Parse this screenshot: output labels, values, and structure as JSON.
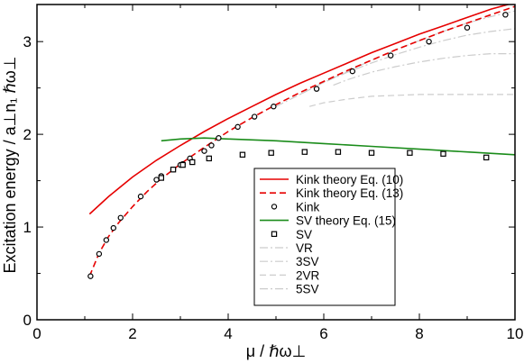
{
  "chart_data": {
    "type": "line",
    "xlabel": "μ / ℏω⊥",
    "ylabel": "Excitation energy / a⊥n₁ ℏω⊥",
    "xlim": [
      0,
      10
    ],
    "ylim": [
      0,
      3.4
    ],
    "xticks": [
      "0",
      "2",
      "4",
      "6",
      "8",
      "10"
    ],
    "yticks": [
      "0",
      "1",
      "2",
      "3"
    ],
    "legend_position": "lower-right",
    "series": [
      {
        "name": "Kink theory Eq. (10)",
        "style": "solid",
        "color": "#e60000",
        "x": [
          1.1,
          1.5,
          2.0,
          2.5,
          3.0,
          3.5,
          4.0,
          4.5,
          5.0,
          5.5,
          6.0,
          6.5,
          7.0,
          7.5,
          8.0,
          8.5,
          9.0,
          9.5,
          10.0
        ],
        "y": [
          1.14,
          1.33,
          1.54,
          1.72,
          1.88,
          2.03,
          2.17,
          2.3,
          2.43,
          2.55,
          2.66,
          2.77,
          2.88,
          2.98,
          3.08,
          3.17,
          3.26,
          3.35,
          3.42
        ]
      },
      {
        "name": "Kink theory Eq. (13)",
        "style": "dashed",
        "color": "#e60000",
        "x": [
          1.1,
          1.3,
          1.5,
          1.7,
          2.0,
          2.3,
          2.6,
          3.0,
          3.5,
          4.0,
          4.5,
          5.0,
          5.5,
          6.0,
          6.5,
          7.0,
          7.5,
          8.0,
          8.5,
          9.0,
          9.5,
          10.0
        ],
        "y": [
          0.47,
          0.72,
          0.9,
          1.04,
          1.22,
          1.38,
          1.52,
          1.68,
          1.86,
          2.03,
          2.18,
          2.32,
          2.45,
          2.57,
          2.69,
          2.8,
          2.91,
          3.01,
          3.11,
          3.2,
          3.29,
          3.38
        ]
      },
      {
        "name": "Kink",
        "style": "circle-markers",
        "color": "#000000",
        "x": [
          1.12,
          1.3,
          1.45,
          1.6,
          1.75,
          2.17,
          2.5,
          2.6,
          2.85,
          3.0,
          3.05,
          3.2,
          3.5,
          3.65,
          3.8,
          4.2,
          4.55,
          4.95,
          5.85,
          6.6,
          7.4,
          8.2,
          9.0,
          9.8
        ],
        "y": [
          0.47,
          0.71,
          0.86,
          0.99,
          1.1,
          1.33,
          1.51,
          1.55,
          1.62,
          1.67,
          1.68,
          1.74,
          1.82,
          1.88,
          1.96,
          2.08,
          2.19,
          2.3,
          2.49,
          2.68,
          2.85,
          3.0,
          3.15,
          3.29
        ]
      },
      {
        "name": "SV theory Eq. (15)",
        "style": "solid",
        "color": "#1a8c1a",
        "x": [
          2.6,
          3.0,
          3.5,
          4.0,
          5.0,
          6.0,
          7.0,
          8.0,
          9.0,
          10.0
        ],
        "y": [
          1.93,
          1.95,
          1.96,
          1.95,
          1.93,
          1.9,
          1.87,
          1.84,
          1.81,
          1.78
        ]
      },
      {
        "name": "SV",
        "style": "square-markers",
        "color": "#000000",
        "x": [
          2.6,
          2.85,
          3.05,
          3.25,
          3.6,
          4.3,
          4.9,
          5.6,
          6.3,
          7.0,
          7.8,
          8.5,
          9.4
        ],
        "y": [
          1.53,
          1.62,
          1.67,
          1.7,
          1.74,
          1.78,
          1.8,
          1.81,
          1.81,
          1.8,
          1.8,
          1.79,
          1.75
        ]
      },
      {
        "name": "VR",
        "style": "dashdot",
        "color": "#cccccc",
        "x": [
          5.0,
          5.5,
          6.0,
          6.5,
          7.0,
          7.5,
          8.0,
          8.5,
          9.0,
          9.5,
          10.0
        ],
        "y": [
          2.3,
          2.43,
          2.56,
          2.68,
          2.8,
          2.91,
          3.01,
          3.11,
          3.2,
          3.27,
          3.33
        ]
      },
      {
        "name": "3SV",
        "style": "dashdot",
        "color": "#cccccc",
        "x": [
          5.5,
          6.0,
          6.5,
          7.0,
          7.5,
          8.0,
          8.5,
          9.0,
          9.5,
          10.0
        ],
        "y": [
          2.43,
          2.56,
          2.67,
          2.77,
          2.86,
          2.94,
          3.01,
          3.07,
          3.11,
          3.14
        ]
      },
      {
        "name": "2VR",
        "style": "dashed",
        "color": "#cccccc",
        "x": [
          5.7,
          6.0,
          6.5,
          7.0,
          7.5,
          8.0,
          8.5,
          9.0,
          9.5,
          10.0
        ],
        "y": [
          2.3,
          2.34,
          2.38,
          2.41,
          2.42,
          2.43,
          2.43,
          2.43,
          2.43,
          2.43
        ]
      },
      {
        "name": "5SV",
        "style": "dashdot",
        "color": "#cccccc",
        "x": [
          6.2,
          6.5,
          7.0,
          7.5,
          8.0,
          8.5,
          9.0,
          9.5,
          10.0
        ],
        "y": [
          2.53,
          2.59,
          2.67,
          2.73,
          2.78,
          2.82,
          2.85,
          2.87,
          2.87
        ]
      }
    ]
  }
}
